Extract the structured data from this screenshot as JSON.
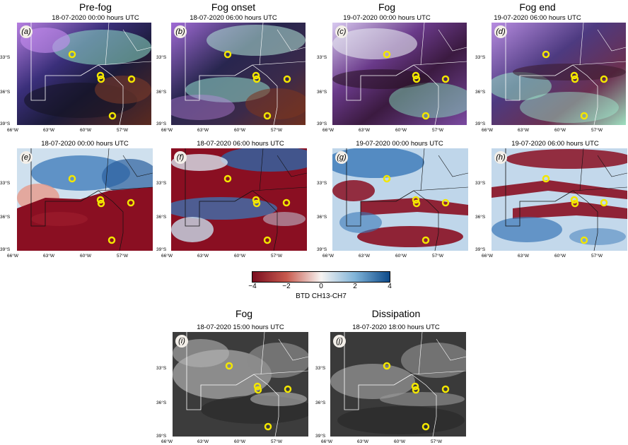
{
  "columns": [
    {
      "title": "Pre-fog",
      "rgb_date": "18-07-2020 00:00 hours UTC",
      "btd_date": "18-07-2020 00:00 hours UTC"
    },
    {
      "title": "Fog onset",
      "rgb_date": "18-07-2020 06:00 hours UTC",
      "btd_date": "18-07-2020 06:00 hours UTC"
    },
    {
      "title": "Fog",
      "rgb_date": "19-07-2020 00:00 hours UTC",
      "btd_date": "19-07-2020 00:00 hours UTC"
    },
    {
      "title": "Fog end",
      "rgb_date": "19-07-2020 06:00 hours UTC",
      "btd_date": "19-07-2020 06:00 hours UTC"
    }
  ],
  "panel_labels": [
    "(a)",
    "(b)",
    "(c)",
    "(d)",
    "(e)",
    "(f)",
    "(g)",
    "(h)",
    "(i)",
    "(j)"
  ],
  "lat_ticks": [
    "33°S",
    "36°S",
    "39°S"
  ],
  "lon_ticks": [
    "66°W",
    "63°W",
    "60°W",
    "57°W"
  ],
  "colorbar": {
    "label": "BTD CH13-CH7",
    "ticks": [
      "−4",
      "−2",
      "0",
      "2",
      "4"
    ],
    "min_color": "#7a0d1f",
    "zero_color": "#f7f4f2",
    "max_color": "#0d4a8a"
  },
  "bottom": [
    {
      "title": "Fog",
      "date": "18-07-2020 15:00 hours UTC"
    },
    {
      "title": "Dissipation",
      "date": "18-07-2020 18:00 hours UTC"
    }
  ],
  "marker_color": "#f2e600",
  "map_legend_icon": "map-legend-icon"
}
